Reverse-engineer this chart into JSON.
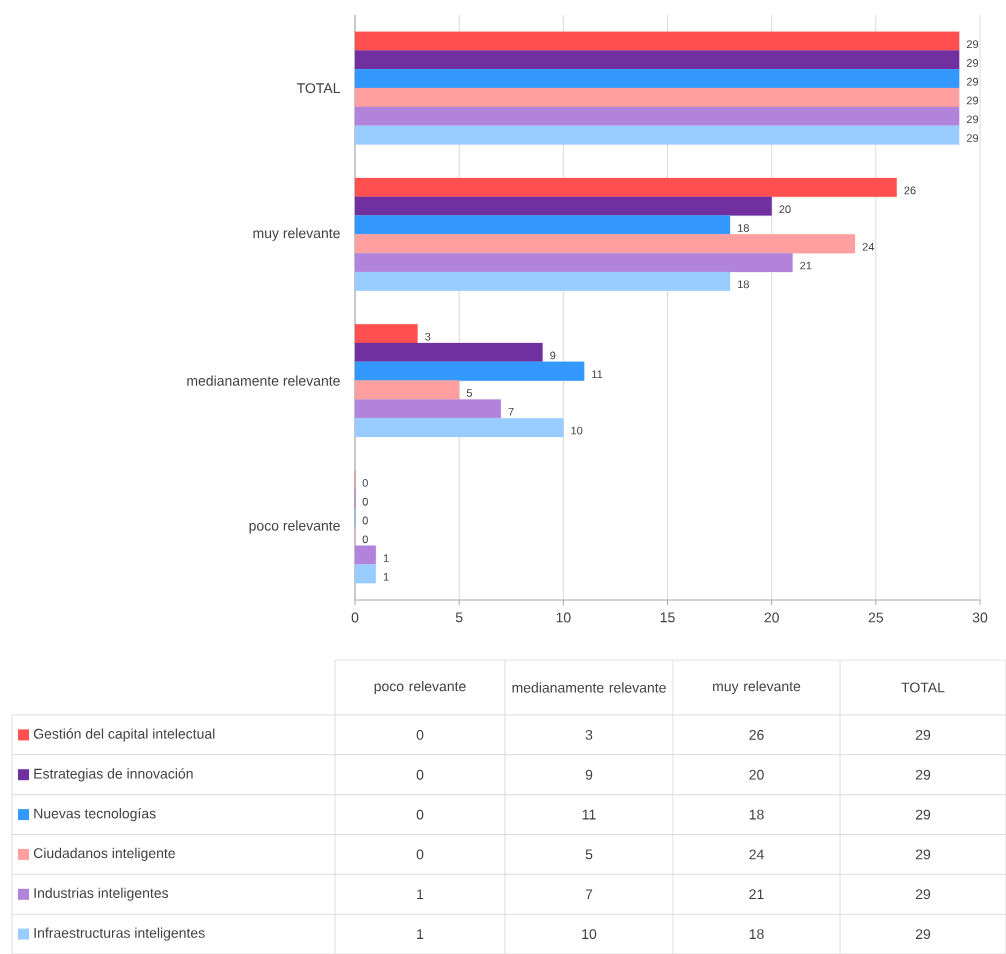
{
  "chart_data": {
    "type": "bar",
    "orientation": "horizontal",
    "categories": [
      "TOTAL",
      "muy relevante",
      "medianamente relevante",
      "poco relevante"
    ],
    "series": [
      {
        "name": "Gestión del capital intelectual",
        "color": "#ff4f4f",
        "values": [
          29,
          26,
          3,
          0
        ],
        "value_labels": [
          "29",
          "26",
          "3",
          "0"
        ]
      },
      {
        "name": "Estrategias de innovación",
        "color": "#7030a0",
        "values": [
          29,
          20,
          9,
          0
        ],
        "value_labels": [
          "29",
          "20",
          "9",
          "0"
        ]
      },
      {
        "name": "Nuevas tecnologías",
        "color": "#3399ff",
        "values": [
          29,
          18,
          11,
          0
        ],
        "value_labels": [
          "29",
          "18",
          "11",
          "0"
        ]
      },
      {
        "name": "Ciudadanos inteligente",
        "color": "#ff9f9f",
        "values": [
          29,
          24,
          5,
          0
        ],
        "value_labels": [
          "29",
          "24",
          "5",
          "0"
        ]
      },
      {
        "name": "Industrias inteligentes",
        "color": "#b283db",
        "values": [
          29,
          21,
          7,
          1
        ],
        "value_labels": [
          "29",
          "21",
          "7",
          "1"
        ]
      },
      {
        "name": "Infraestructuras inteligentes",
        "color": "#99ccff",
        "values": [
          29,
          18,
          10,
          1
        ],
        "value_labels": [
          "29",
          "18",
          "10",
          "1"
        ]
      }
    ],
    "xlim": [
      0,
      30
    ],
    "xticks": [
      0,
      5,
      10,
      15,
      20,
      25,
      30
    ],
    "grid": "x",
    "legend": "bottom"
  }
}
